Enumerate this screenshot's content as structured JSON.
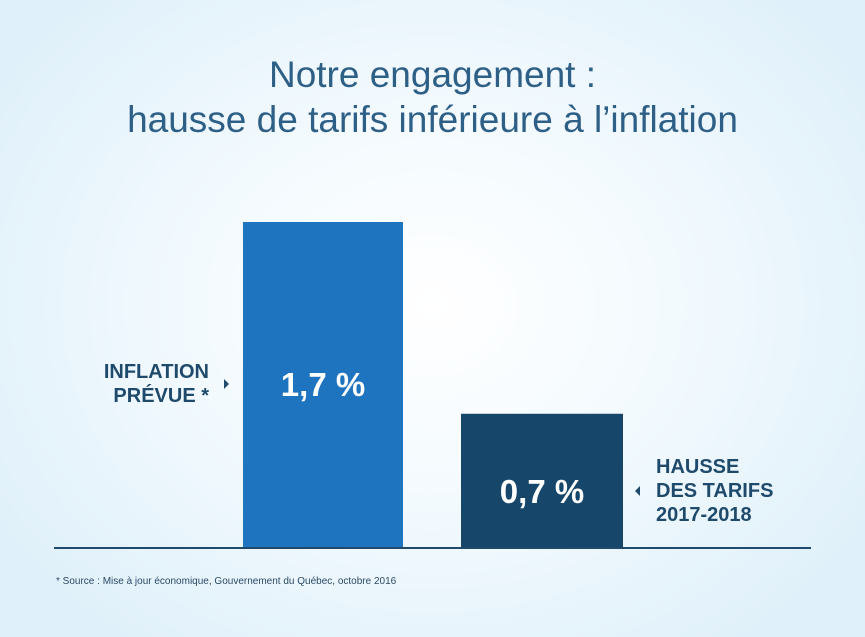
{
  "title_lines": [
    "Notre engagement :",
    "hausse de tarifs inférieure à l’inflation"
  ],
  "colors": {
    "title": "#2e5f86",
    "bar_inflation": "#1f74bf",
    "bar_tarifs": "#16476b",
    "label": "#1f4a6c",
    "baseline": "#1f4a6c"
  },
  "chart_data": {
    "type": "bar",
    "title": "Notre engagement : hausse de tarifs inférieure à l’inflation",
    "categories": [
      "INFLATION PRÉVUE *",
      "HAUSSE DES TARIFS 2017-2018"
    ],
    "values": [
      1.7,
      0.7
    ],
    "value_labels": [
      "1,7 %",
      "0,7 %"
    ],
    "unit": "%",
    "ylim": [
      0,
      2.5
    ],
    "grid": false,
    "legend": "none",
    "category_label_lines": [
      [
        "INFLATION",
        "PRÉVUE *"
      ],
      [
        "HAUSSE",
        "DES TARIFS",
        "2017-2018"
      ]
    ],
    "category_label_side": [
      "left",
      "right"
    ]
  },
  "footnote": "* Source : Mise à jour économique, Gouvernement du Québec, octobre 2016"
}
